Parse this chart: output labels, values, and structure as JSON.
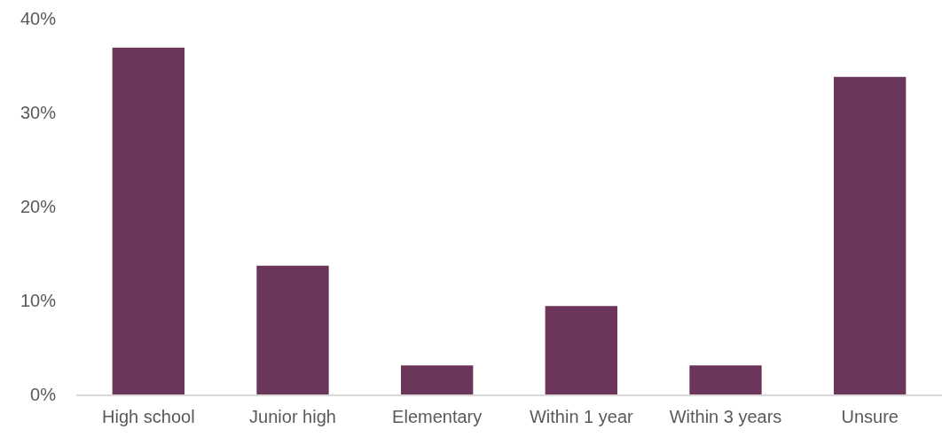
{
  "chart_data": {
    "type": "bar",
    "categories": [
      "High school",
      "Junior high",
      "Elementary",
      "Within 1 year",
      "Within 3 years",
      "Unsure"
    ],
    "values": [
      36.9,
      13.7,
      3.1,
      9.4,
      3.1,
      33.8
    ],
    "color": "#6b3659",
    "ylim": [
      0,
      40
    ],
    "yticks": [
      {
        "value": 0,
        "label": "0%"
      },
      {
        "value": 10,
        "label": "10%"
      },
      {
        "value": 20,
        "label": "20%"
      },
      {
        "value": 30,
        "label": "30%"
      },
      {
        "value": 40,
        "label": "40%"
      }
    ],
    "grid": false
  }
}
